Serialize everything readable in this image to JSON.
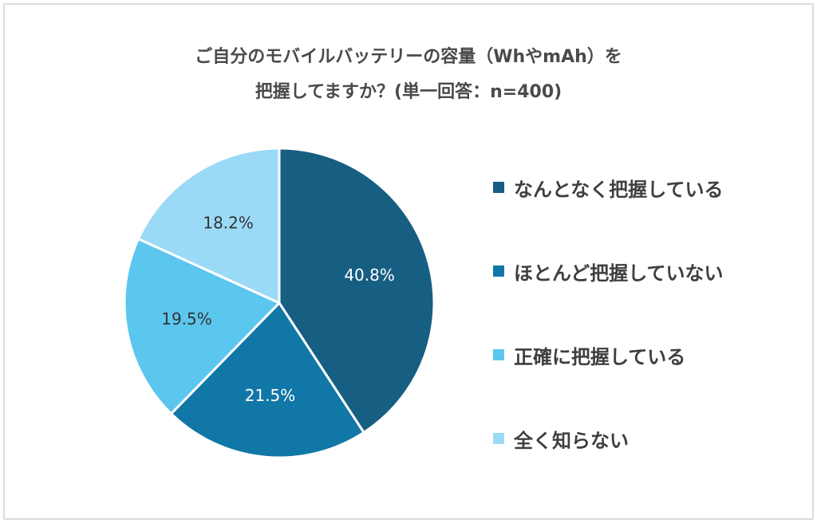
{
  "chart_data": {
    "type": "pie",
    "title": [
      "ご自分のモバイルバッテリーの容量（WhやmAh）を",
      "把握してますか？(単一回答：n=400)"
    ],
    "categories": [
      "なんとなく把握している",
      "ほとんど把握していない",
      "正確に把握している",
      "全く知らない"
    ],
    "values": [
      40.8,
      21.5,
      19.5,
      18.2
    ],
    "labels": [
      "40.8%",
      "21.5%",
      "19.5%",
      "18.2%"
    ],
    "colors": [
      "#165e82",
      "#1177a6",
      "#5bc6ee",
      "#9bdaf7"
    ],
    "label_colors": [
      "#ffffff",
      "#ffffff",
      "#333333",
      "#333333"
    ],
    "legend_placement": "right"
  }
}
